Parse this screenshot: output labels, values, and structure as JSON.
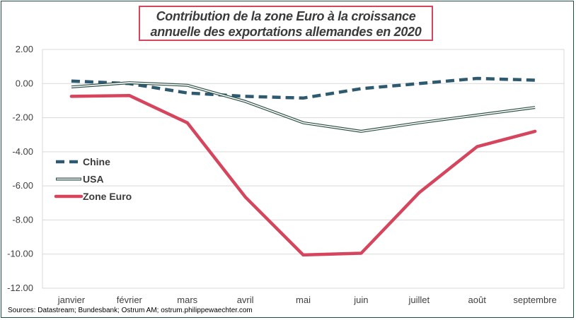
{
  "chart_data": {
    "type": "line",
    "title_line1": "Contribution de la zone Euro à la croissance",
    "title_line2": "annuelle des exportations allemandes en 2020",
    "categories": [
      "janvier",
      "février",
      "mars",
      "avril",
      "mai",
      "juin",
      "juillet",
      "août",
      "septembre"
    ],
    "ylim": [
      -12,
      2
    ],
    "yticks": [
      "2.00",
      "0.00",
      "-2.00",
      "-4.00",
      "-6.00",
      "-8.00",
      "-10.00",
      "-12.00"
    ],
    "ytick_values": [
      2,
      0,
      -2,
      -4,
      -6,
      -8,
      -10,
      -12
    ],
    "grid": true,
    "legend_position": "left",
    "series": [
      {
        "name": "Chine",
        "values": [
          0.15,
          0.0,
          -0.55,
          -0.75,
          -0.85,
          -0.3,
          0.0,
          0.3,
          0.2
        ],
        "color": "#2e5a70",
        "style": "dashed"
      },
      {
        "name": "USA",
        "values": [
          -0.2,
          0.05,
          -0.1,
          -1.05,
          -2.3,
          -2.8,
          -2.3,
          -1.85,
          -1.4
        ],
        "color": "#2f5248",
        "style": "double"
      },
      {
        "name": "Zone Euro",
        "values": [
          -0.75,
          -0.7,
          -2.3,
          -6.65,
          -10.05,
          -9.95,
          -6.4,
          -3.7,
          -2.8
        ],
        "color": "#d6455e",
        "style": "solid"
      }
    ]
  },
  "source": "Sources: Datastream; Bundesbank; Ostrum AM; ostrum.philippewaechter.com"
}
